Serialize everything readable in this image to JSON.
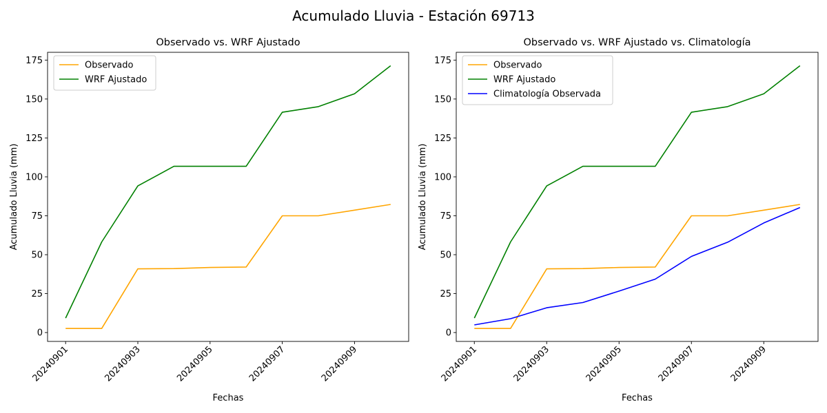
{
  "figure": {
    "suptitle": "Acumulado Lluvia - Estación 69713"
  },
  "colors": {
    "Observado": "#ffa500",
    "WRF Ajustado": "#008000",
    "Climatología Observada": "#0000ff"
  },
  "chart_data": [
    {
      "type": "line",
      "title": "Observado vs. WRF Ajustado",
      "xlabel": "Fechas",
      "ylabel": "Acumulado Lluvia (mm)",
      "x": [
        "20240901",
        "20240902",
        "20240903",
        "20240904",
        "20240905",
        "20240906",
        "20240907",
        "20240908",
        "20240909",
        "20240910"
      ],
      "xticks": [
        "20240901",
        "20240903",
        "20240905",
        "20240907",
        "20240909"
      ],
      "yticks": [
        0,
        25,
        50,
        75,
        100,
        125,
        150,
        175
      ],
      "ylim": [
        -5.7,
        180
      ],
      "grid": false,
      "legend": "top-left",
      "series": [
        {
          "name": "Observado",
          "values": [
            2.6,
            2.6,
            40.9,
            41.1,
            41.8,
            42.1,
            75.0,
            75.0,
            78.6,
            82.3
          ]
        },
        {
          "name": "WRF Ajustado",
          "values": [
            9.3,
            58.2,
            94.2,
            106.8,
            106.8,
            106.8,
            141.5,
            145.1,
            153.4,
            171.4
          ]
        }
      ]
    },
    {
      "type": "line",
      "title": "Observado vs. WRF Ajustado vs. Climatología",
      "xlabel": "Fechas",
      "ylabel": "Acumulado Lluvia (mm)",
      "x": [
        "20240901",
        "20240902",
        "20240903",
        "20240904",
        "20240905",
        "20240906",
        "20240907",
        "20240908",
        "20240909",
        "20240910"
      ],
      "xticks": [
        "20240901",
        "20240903",
        "20240905",
        "20240907",
        "20240909"
      ],
      "yticks": [
        0,
        25,
        50,
        75,
        100,
        125,
        150,
        175
      ],
      "ylim": [
        -5.7,
        180
      ],
      "grid": false,
      "legend": "top-left",
      "series": [
        {
          "name": "Observado",
          "values": [
            2.6,
            2.6,
            40.9,
            41.1,
            41.8,
            42.1,
            75.0,
            75.0,
            78.6,
            82.3
          ]
        },
        {
          "name": "WRF Ajustado",
          "values": [
            9.3,
            58.2,
            94.2,
            106.8,
            106.8,
            106.8,
            141.5,
            145.1,
            153.4,
            171.4
          ]
        },
        {
          "name": "Climatología Observada",
          "values": [
            4.9,
            8.9,
            15.9,
            19.3,
            26.6,
            34.3,
            48.9,
            58.0,
            70.4,
            80.3
          ]
        }
      ]
    }
  ]
}
